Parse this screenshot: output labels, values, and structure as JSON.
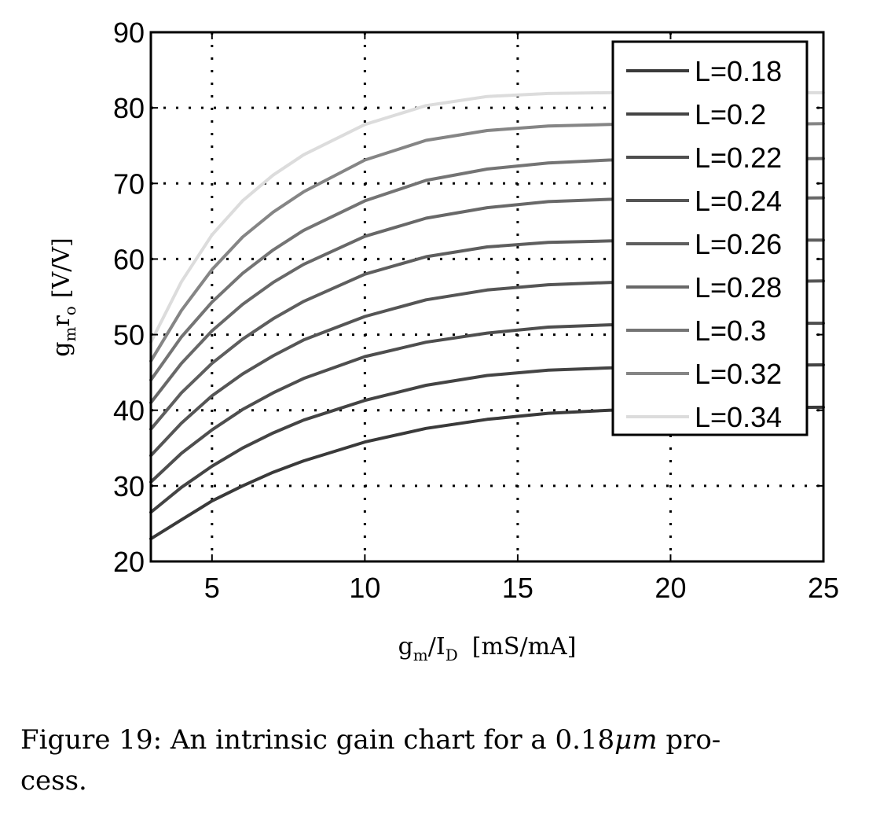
{
  "chart_data": {
    "type": "line",
    "xlabel_main": "g",
    "xlabel_sub1": "m",
    "xlabel_mid": "/I",
    "xlabel_sub2": "D",
    "xlabel_unit": "[mS/mA]",
    "ylabel_main1": "g",
    "ylabel_sub1": "m",
    "ylabel_main2": "r",
    "ylabel_sub2": "o",
    "ylabel_unit": "[V/V]",
    "xlim": [
      3,
      25
    ],
    "ylim": [
      20,
      90
    ],
    "xticks": [
      "5",
      "10",
      "15",
      "20",
      "25"
    ],
    "yticks": [
      "20",
      "30",
      "40",
      "50",
      "60",
      "70",
      "80",
      "90"
    ],
    "grid": true,
    "legend_position": "top-right",
    "x": [
      3,
      4,
      5,
      6,
      7,
      8,
      10,
      12,
      14,
      16,
      18,
      20,
      22,
      25
    ],
    "series": [
      {
        "name": "L=0.18",
        "color": "#3a3a3a",
        "values": [
          23.0,
          25.5,
          28.0,
          30.0,
          31.8,
          33.3,
          35.8,
          37.6,
          38.8,
          39.6,
          40.0,
          40.2,
          40.3,
          40.4
        ]
      },
      {
        "name": "L=0.2",
        "color": "#444444",
        "values": [
          26.5,
          29.8,
          32.6,
          35.0,
          37.0,
          38.7,
          41.3,
          43.3,
          44.6,
          45.3,
          45.6,
          45.8,
          45.9,
          46.0
        ]
      },
      {
        "name": "L=0.22",
        "color": "#4e4e4e",
        "values": [
          30.5,
          34.3,
          37.4,
          40.1,
          42.3,
          44.2,
          47.1,
          49.0,
          50.2,
          51.0,
          51.3,
          51.4,
          51.5,
          51.5
        ]
      },
      {
        "name": "L=0.24",
        "color": "#555555",
        "values": [
          34.0,
          38.3,
          41.9,
          44.8,
          47.2,
          49.3,
          52.4,
          54.6,
          55.9,
          56.6,
          56.9,
          57.0,
          57.0,
          57.1
        ]
      },
      {
        "name": "L=0.26",
        "color": "#5e5e5e",
        "values": [
          37.5,
          42.3,
          46.2,
          49.4,
          52.1,
          54.4,
          58.0,
          60.3,
          61.6,
          62.2,
          62.4,
          62.5,
          62.5,
          62.5
        ]
      },
      {
        "name": "L=0.28",
        "color": "#686868",
        "values": [
          41.0,
          46.2,
          50.5,
          54.0,
          56.9,
          59.3,
          63.0,
          65.4,
          66.8,
          67.6,
          67.9,
          68.0,
          68.0,
          68.1
        ]
      },
      {
        "name": "L=0.3",
        "color": "#747474",
        "values": [
          44.0,
          49.7,
          54.3,
          58.1,
          61.2,
          63.8,
          67.7,
          70.4,
          71.9,
          72.7,
          73.1,
          73.2,
          73.2,
          73.3
        ]
      },
      {
        "name": "L=0.32",
        "color": "#858585",
        "values": [
          46.5,
          53.2,
          58.6,
          62.9,
          66.2,
          68.9,
          73.1,
          75.7,
          77.0,
          77.6,
          77.8,
          77.8,
          77.8,
          77.9
        ]
      },
      {
        "name": "L=0.34",
        "color": "#dcdcdc",
        "values": [
          49.0,
          57.0,
          63.2,
          67.7,
          71.1,
          73.8,
          77.8,
          80.3,
          81.5,
          81.9,
          82.0,
          82.0,
          82.0,
          82.0
        ]
      }
    ]
  },
  "caption": {
    "line1": "Figure 19: An intrinsic gain chart for a 0.18",
    "mu": "μm",
    "line1_end": " pro-",
    "line2": "cess."
  }
}
